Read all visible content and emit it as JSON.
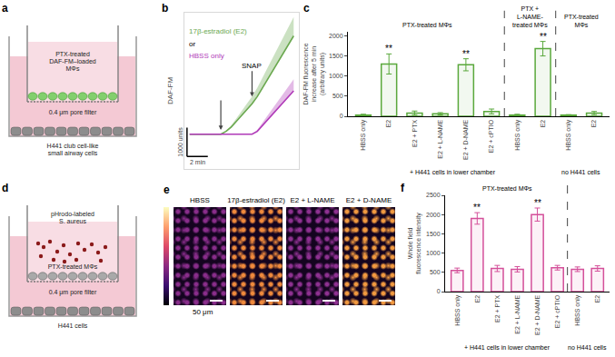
{
  "diagrams": {
    "a": {
      "panel": "a",
      "labels": {
        "cells": "PTX-treated\nDAF-FM–loaded\nMΦs",
        "filter": "0.4 μm pore filter",
        "lower": "H441 club cell-like\nsmall airway cells"
      }
    },
    "d": {
      "panel": "d",
      "labels": {
        "bacteria": "pHrodo-labeled\nS. aureus",
        "cells": "PTX-treated MΦs",
        "filter": "0.4 μm pore filter",
        "lower": "H441 cells"
      }
    }
  },
  "images": {
    "panel": "e",
    "scale_label": "50 μm",
    "items": [
      {
        "title": "HBSS",
        "color": "#8a2d8c"
      },
      {
        "title": "17β-estradiol (E2)",
        "color": "#f08a3c"
      },
      {
        "title": "E2 + L-NAME",
        "color": "#8f3192"
      },
      {
        "title": "E2 + D-NAME",
        "color": "#f29a40"
      }
    ]
  },
  "chart_data": [
    {
      "panel": "b",
      "type": "line",
      "y_label": "DAF-FM",
      "x": [
        0,
        0.5,
        1,
        1.5,
        2,
        2.5,
        3,
        3.5,
        4,
        4.5,
        5,
        5.5,
        6,
        6.5,
        7,
        7.5,
        8,
        8.5,
        9,
        9.5,
        10
      ],
      "series": [
        {
          "name": "17β-estradiol (E2)",
          "color": "#6aa84f",
          "values": [
            0,
            0,
            0,
            0,
            0,
            0,
            0,
            100,
            250,
            450,
            650,
            850,
            1050,
            1300,
            1600,
            1900,
            2200,
            2500,
            2800,
            3100,
            3400
          ],
          "errors": [
            0,
            0,
            0,
            0,
            0,
            0,
            0,
            30,
            60,
            100,
            150,
            200,
            250,
            300,
            350,
            400,
            450,
            500,
            550,
            600,
            650
          ]
        },
        {
          "name": "HBSS only",
          "color": "#b03ab8",
          "values": [
            0,
            0,
            0,
            0,
            0,
            0,
            0,
            0,
            0,
            0,
            0,
            0,
            0,
            100,
            300,
            500,
            700,
            900,
            1100,
            1300,
            1500
          ],
          "errors": [
            0,
            0,
            0,
            0,
            0,
            0,
            0,
            0,
            0,
            0,
            0,
            0,
            0,
            50,
            100,
            150,
            200,
            250,
            300,
            350,
            400
          ]
        }
      ],
      "connector": "or",
      "xlim": [
        -0.5,
        10.5
      ],
      "ylim": [
        -1200,
        4200
      ],
      "tick_labels": false,
      "grid": false,
      "annotations": [
        {
          "x": 3,
          "y": 150
        },
        {
          "x": 6,
          "y": 1300,
          "text": "SNAP"
        }
      ],
      "scale_bar": {
        "x": 2,
        "x_label": "2 min",
        "y": 1000,
        "y_label": "1000 units"
      }
    },
    {
      "panel": "c",
      "type": "bar",
      "y_label": "DAF-FM fluorescence\nincrease after 5 min\n(arbitrary units)",
      "categories": [
        "HBSS only",
        "E2",
        "E2 + PTX",
        "E2 + L-NAME",
        "E2 + D-NAME",
        "E2 + cPTIO",
        "HBSS only",
        "E2",
        "HBSS only",
        "E2"
      ],
      "values": [
        30,
        1300,
        80,
        60,
        1280,
        120,
        30,
        1680,
        30,
        80
      ],
      "errors": [
        20,
        250,
        50,
        30,
        150,
        60,
        20,
        180,
        10,
        40
      ],
      "significance": [
        null,
        "**",
        null,
        null,
        "**",
        null,
        null,
        "**",
        null,
        null
      ],
      "groups": [
        {
          "label": "PTX-treated MΦs",
          "start": 0,
          "end": 5
        },
        {
          "label": "PTX +\nL-NAME-\ntreated MΦs",
          "start": 6,
          "end": 7
        },
        {
          "label": "PTX-treated\nMΦs",
          "start": 8,
          "end": 9
        }
      ],
      "conditions": [
        {
          "label": "+ H441 cells in lower chamber",
          "start": 0,
          "end": 7
        },
        {
          "label": "no H441 cells",
          "start": 8,
          "end": 9
        }
      ],
      "color": "#5aa83c",
      "ylim": [
        0,
        2100
      ],
      "yticks": [
        0,
        500,
        1000,
        1500,
        2000
      ],
      "grid": false
    },
    {
      "panel": "f",
      "type": "bar",
      "y_label": "Whole field\nfluorescence intensity",
      "categories": [
        "HBSS only",
        "E2",
        "E2 + PTX",
        "E2 + L-NAME",
        "E2 + D-NAME",
        "E2 + cPTIO",
        "HBSS only",
        "E2"
      ],
      "values": [
        550,
        1900,
        600,
        580,
        2000,
        620,
        580,
        600
      ],
      "errors": [
        60,
        150,
        80,
        70,
        170,
        60,
        60,
        70
      ],
      "significance": [
        null,
        "**",
        null,
        null,
        "**",
        null,
        null,
        null
      ],
      "groups": [
        {
          "label": "PTX-treated MΦs",
          "start": 0,
          "end": 5
        }
      ],
      "conditions": [
        {
          "label": "+ H441 cells in lower chamber",
          "start": 0,
          "end": 5
        },
        {
          "label": "no H441 cells",
          "start": 6,
          "end": 7
        }
      ],
      "color": "#d4509a",
      "ylim": [
        0,
        2500
      ],
      "yticks": [
        0,
        500,
        1000,
        1500,
        2000,
        2500
      ],
      "grid": false
    }
  ]
}
